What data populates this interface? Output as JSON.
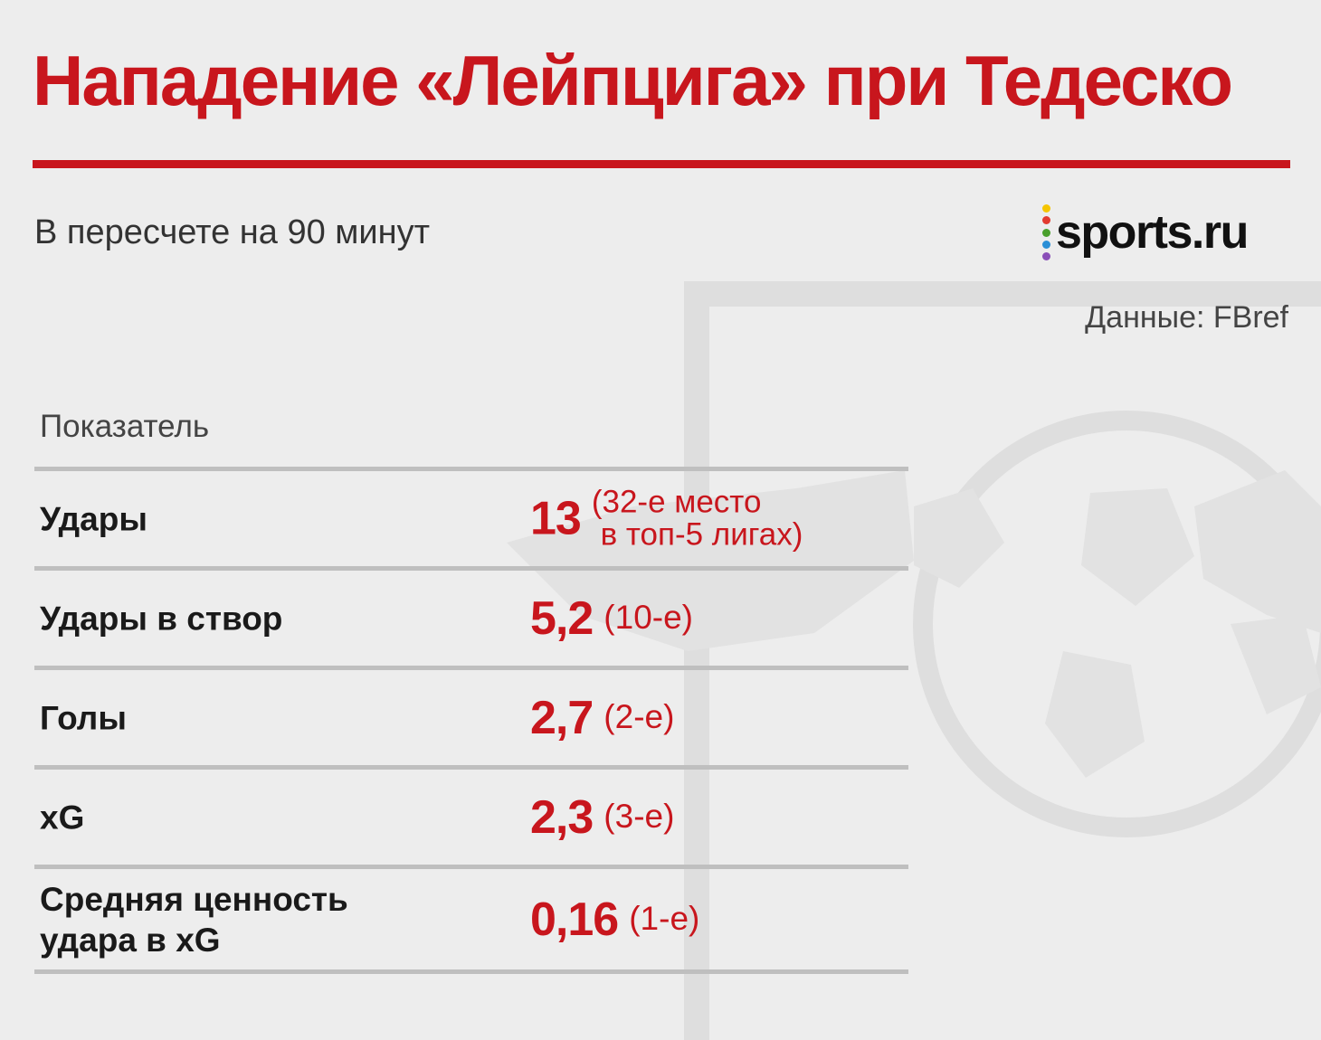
{
  "title": "Нападение «Лейпцига» при Тедеско",
  "subtitle": "В пересчете на 90 минут",
  "logo": {
    "text": "sports.ru",
    "dot_colors": [
      "#f5c500",
      "#e23b30",
      "#4aa02c",
      "#2a8fd6",
      "#8a4fb8"
    ]
  },
  "source": "Данные: FBref",
  "column_header": "Показатель",
  "colors": {
    "accent": "#c8161d",
    "rule": "#bfbfbf",
    "background": "#ededed"
  },
  "rows": [
    {
      "metric": "Удары",
      "value": "13",
      "rank_line1": "(32-е место",
      "rank_line2": " в топ-5 лигах)"
    },
    {
      "metric": "Удары в створ",
      "value": "5,2",
      "rank": "(10-е)"
    },
    {
      "metric": "Голы",
      "value": "2,7",
      "rank": "(2-е)"
    },
    {
      "metric": "xG",
      "value": "2,3",
      "rank": "(3-е)"
    },
    {
      "metric_line1": "Средняя ценность",
      "metric_line2": "удара в xG",
      "value": "0,16",
      "rank": "(1-е)"
    }
  ]
}
